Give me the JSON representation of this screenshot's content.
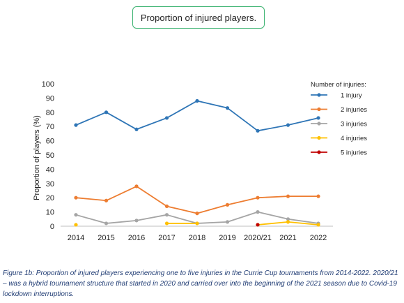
{
  "chart_data": {
    "type": "line",
    "title": "Proportion of injured players.",
    "xlabel": "",
    "ylabel": "Proportion of players (%)",
    "categories": [
      "2014",
      "2015",
      "2016",
      "2017",
      "2018",
      "2019",
      "2020/21",
      "2021",
      "2022"
    ],
    "ylim": [
      0,
      100
    ],
    "yticks": [
      0,
      10,
      20,
      30,
      40,
      50,
      60,
      70,
      80,
      90,
      100
    ],
    "grid": false,
    "legend_title": "Number of injuries:",
    "legend_position": "right",
    "series": [
      {
        "name": "1 injury",
        "color": "#2e75b6",
        "values": [
          71,
          80,
          68,
          76,
          88,
          83,
          67,
          71,
          76
        ]
      },
      {
        "name": "2 injuries",
        "color": "#ed7d31",
        "values": [
          20,
          18,
          28,
          14,
          9,
          15,
          20,
          21,
          21
        ]
      },
      {
        "name": "3 injuries",
        "color": "#a5a5a5",
        "values": [
          8,
          2,
          4,
          8,
          2,
          3,
          10,
          5,
          2
        ]
      },
      {
        "name": "4 injuries",
        "color": "#ffc000",
        "values": [
          1,
          null,
          null,
          2,
          2,
          null,
          1,
          3,
          1
        ]
      },
      {
        "name": "5 injuries",
        "color": "#c00000",
        "values": [
          null,
          null,
          null,
          null,
          null,
          null,
          1,
          null,
          null
        ]
      }
    ]
  },
  "caption": "Figure 1b: Proportion of injured players experiencing one to five injuries in the Currie Cup tournaments from 2014-2022. 2020/21 – was a hybrid tournament structure that started in 2020 and carried over into the beginning of the 2021 season due to Covid-19 lockdown interruptions."
}
